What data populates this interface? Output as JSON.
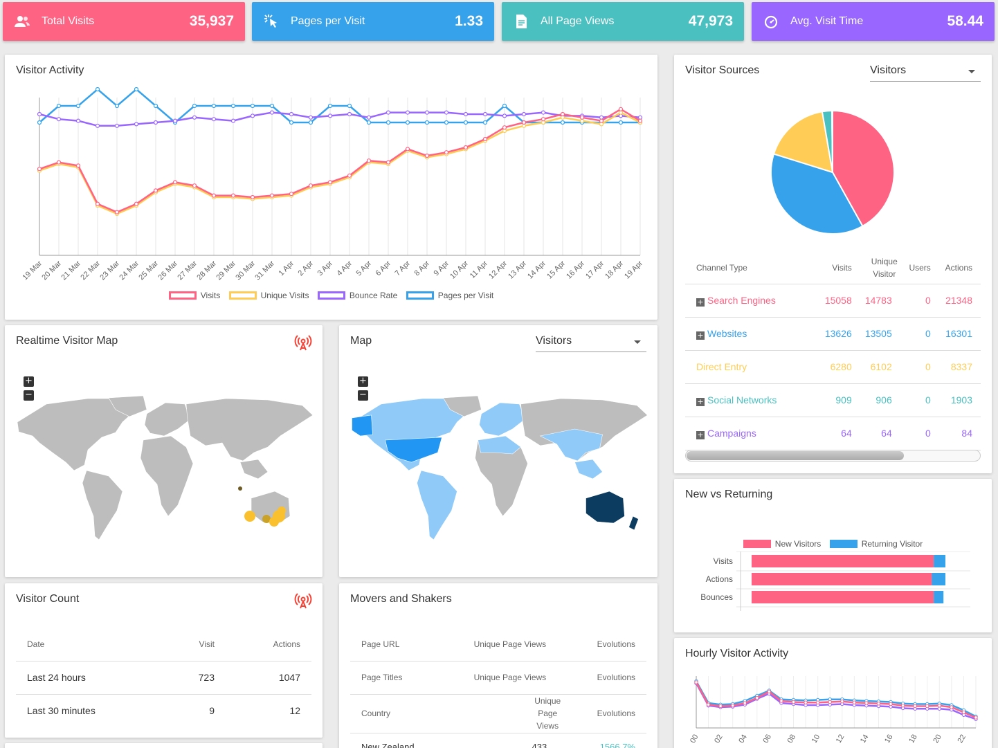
{
  "stats": [
    {
      "label": "Total Visits",
      "value": "35,937",
      "color": "#ff6384",
      "icon": "users-icon"
    },
    {
      "label": "Pages per Visit",
      "value": "1.33",
      "color": "#36a2eb",
      "icon": "pointer-click-icon"
    },
    {
      "label": "All Page Views",
      "value": "47,973",
      "color": "#4bc0c0",
      "icon": "document-icon"
    },
    {
      "label": "Avg. Visit Time",
      "value": "58.44",
      "color": "#9966ff",
      "icon": "timer-icon"
    }
  ],
  "visitor_activity": {
    "title": "Visitor Activity",
    "legend": [
      "Visits",
      "Unique Visits",
      "Bounce Rate",
      "Pages per Visit"
    ]
  },
  "chart_data": [
    {
      "type": "line",
      "title": "Visitor Activity",
      "categories": [
        "19 Mar",
        "20 Mar",
        "21 Mar",
        "22 Mar",
        "23 Mar",
        "24 Mar",
        "25 Mar",
        "26 Mar",
        "27 Mar",
        "28 Mar",
        "29 Mar",
        "30 Mar",
        "31 Mar",
        "1 Apr",
        "2 Apr",
        "3 Apr",
        "4 Apr",
        "5 Apr",
        "6 Apr",
        "7 Apr",
        "8 Apr",
        "9 Apr",
        "10 Apr",
        "11 Apr",
        "12 Apr",
        "13 Apr",
        "14 Apr",
        "15 Apr",
        "16 Apr",
        "17 Apr",
        "18 Apr",
        "19 Apr"
      ],
      "ylim": [
        0,
        100
      ],
      "series": [
        {
          "name": "Visits",
          "color": "#ff6384",
          "values": [
            52,
            56,
            54,
            31,
            26,
            31,
            39,
            44,
            42,
            36,
            36,
            35,
            36,
            37,
            42,
            44,
            48,
            57,
            56,
            64,
            60,
            62,
            65,
            70,
            77,
            80,
            82,
            85,
            83,
            81,
            88,
            81
          ]
        },
        {
          "name": "Unique Visits",
          "color": "#ffcd56",
          "values": [
            51,
            55,
            53,
            30,
            25,
            30,
            38,
            43,
            41,
            35,
            35,
            34,
            35,
            36,
            41,
            43,
            47,
            56,
            55,
            63,
            59,
            61,
            64,
            69,
            75,
            78,
            80,
            83,
            81,
            79,
            86,
            80
          ]
        },
        {
          "name": "Bounce Rate",
          "color": "#9966ff",
          "values": [
            85,
            82,
            81,
            78,
            78,
            79,
            80,
            81,
            83,
            82,
            81,
            84,
            86,
            85,
            83,
            84,
            85,
            83,
            86,
            86,
            86,
            86,
            85,
            85,
            84,
            85,
            86,
            84,
            84,
            83,
            84,
            83
          ]
        },
        {
          "name": "Pages per Visit",
          "color": "#36a2eb",
          "values": [
            80,
            90,
            90,
            100,
            90,
            100,
            90,
            80,
            90,
            90,
            90,
            90,
            90,
            80,
            80,
            90,
            90,
            80,
            80,
            80,
            80,
            80,
            80,
            80,
            90,
            80,
            80,
            80,
            80,
            80,
            80,
            80
          ]
        }
      ]
    },
    {
      "type": "pie",
      "title": "Visitor Sources",
      "categories": [
        "Search Engines",
        "Websites",
        "Direct Entry",
        "Social Networks",
        "Campaigns"
      ],
      "values": [
        15058,
        13626,
        6280,
        909,
        64
      ],
      "colors": [
        "#ff6384",
        "#36a2eb",
        "#ffcd56",
        "#4bc0c0",
        "#9966ff"
      ]
    },
    {
      "type": "bar",
      "title": "New vs Returning",
      "orientation": "horizontal",
      "stacked": true,
      "categories": [
        "Visits",
        "Actions",
        "Bounces"
      ],
      "series": [
        {
          "name": "New Visitors",
          "color": "#ff6384",
          "values": [
            94,
            93,
            94
          ]
        },
        {
          "name": "Returning Visitor",
          "color": "#36a2eb",
          "values": [
            6,
            7,
            5
          ]
        }
      ]
    },
    {
      "type": "line",
      "title": "Hourly Visitor Activity",
      "categories": [
        "00",
        "01",
        "02",
        "03",
        "04",
        "05",
        "06",
        "07",
        "08",
        "09",
        "10",
        "11",
        "12",
        "13",
        "14",
        "15",
        "16",
        "17",
        "18",
        "19",
        "20",
        "21",
        "22",
        "23"
      ],
      "tick_labels": [
        "00",
        "02",
        "04",
        "06",
        "08",
        "10",
        "12",
        "14",
        "16",
        "18",
        "20",
        "22"
      ],
      "ylim": [
        0,
        100
      ],
      "series": [
        {
          "name": "Visits",
          "color": "#ff6384",
          "values": [
            88,
            45,
            42,
            43,
            48,
            58,
            70,
            52,
            50,
            49,
            49,
            50,
            51,
            49,
            48,
            47,
            46,
            43,
            42,
            42,
            43,
            40,
            30,
            20
          ]
        },
        {
          "name": "Unique Visits",
          "color": "#9966ff",
          "values": [
            86,
            43,
            40,
            41,
            45,
            56,
            66,
            48,
            46,
            44,
            44,
            45,
            46,
            44,
            43,
            42,
            41,
            38,
            37,
            37,
            37,
            35,
            25,
            17
          ]
        },
        {
          "name": "Pages per Visit",
          "color": "#36a2eb",
          "values": [
            90,
            48,
            45,
            46,
            52,
            62,
            72,
            55,
            54,
            53,
            54,
            55,
            55,
            53,
            52,
            51,
            50,
            47,
            46,
            46,
            47,
            44,
            34,
            22
          ]
        }
      ]
    }
  ],
  "visitor_sources": {
    "title": "Visitor Sources",
    "dropdown": "Visitors",
    "headers": [
      "Channel Type",
      "Visits",
      "Unique Visitor",
      "Users",
      "Actions"
    ],
    "rows": [
      {
        "name": "Search Engines",
        "visits": "15058",
        "unique": "14783",
        "users": "0",
        "actions": "21348",
        "color": "#ff6384",
        "expandable": true
      },
      {
        "name": "Websites",
        "visits": "13626",
        "unique": "13505",
        "users": "0",
        "actions": "16301",
        "color": "#36a2eb",
        "expandable": true
      },
      {
        "name": "Direct Entry",
        "visits": "6280",
        "unique": "6102",
        "users": "0",
        "actions": "8337",
        "color": "#ffcd56",
        "expandable": false
      },
      {
        "name": "Social Networks",
        "visits": "909",
        "unique": "906",
        "users": "0",
        "actions": "1903",
        "color": "#4bc0c0",
        "expandable": true
      },
      {
        "name": "Campaigns",
        "visits": "64",
        "unique": "64",
        "users": "0",
        "actions": "84",
        "color": "#9966ff",
        "expandable": true
      }
    ]
  },
  "realtime_map": {
    "title": "Realtime Visitor Map"
  },
  "map": {
    "title": "Map",
    "dropdown": "Visitors"
  },
  "new_vs_returning": {
    "title": "New vs Returning",
    "legend": [
      "New Visitors",
      "Returning Visitor"
    ]
  },
  "visitor_count": {
    "title": "Visitor Count",
    "headers": [
      "Date",
      "Visit",
      "Actions"
    ],
    "rows": [
      {
        "date": "Last 24 hours",
        "visit": "723",
        "actions": "1047"
      },
      {
        "date": "Last 30 minutes",
        "visit": "9",
        "actions": "12"
      }
    ]
  },
  "movers": {
    "title": "Movers and Shakers",
    "rows": [
      {
        "label": "Page URL",
        "col": "Unique Page Views",
        "evo": "Evolutions"
      },
      {
        "label": "Page Titles",
        "col": "Unique Page Views",
        "evo": "Evolutions"
      },
      {
        "label": "Country",
        "col": "Unique Page Views",
        "evo": "Evolutions"
      }
    ],
    "partial_row": {
      "label": "New Zealand",
      "col": "433",
      "evo": "1566.7%"
    }
  },
  "hourly": {
    "title": "Hourly Visitor Activity"
  }
}
